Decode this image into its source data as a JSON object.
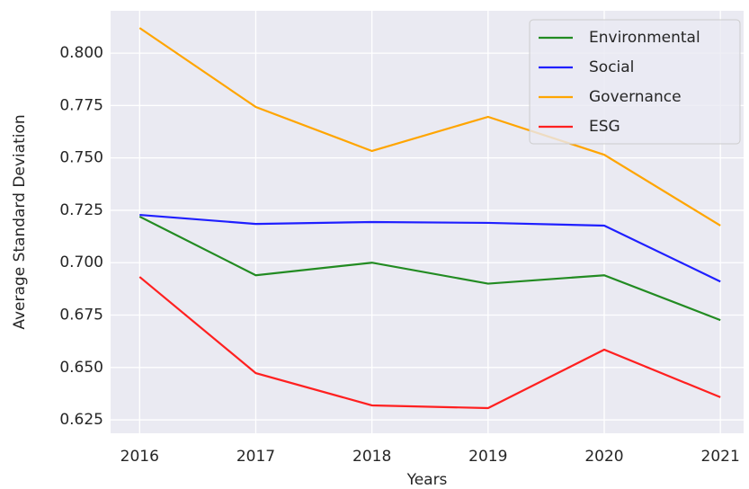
{
  "chart_data": {
    "type": "line",
    "x_label": "Years",
    "y_label": "Average Standard Deviation",
    "x": [
      2016,
      2017,
      2018,
      2019,
      2020,
      2021
    ],
    "series": [
      {
        "name": "Environmental",
        "color": "#228b22",
        "values": [
          0.722,
          0.694,
          0.7,
          0.69,
          0.694,
          0.6726
        ]
      },
      {
        "name": "Social",
        "color": "#1f1fff",
        "values": [
          0.7228,
          0.7185,
          0.7194,
          0.719,
          0.7177,
          0.691
        ]
      },
      {
        "name": "Governance",
        "color": "#ffa500",
        "values": [
          0.812,
          0.7743,
          0.7533,
          0.7696,
          0.7515,
          0.7177
        ]
      },
      {
        "name": "ESG",
        "color": "#ff2020",
        "values": [
          0.6932,
          0.6473,
          0.6319,
          0.6306,
          0.6585,
          0.6358
        ]
      }
    ],
    "xlim": [
      2015.75,
      2021.2
    ],
    "xticks": [
      2016,
      2017,
      2018,
      2019,
      2020,
      2021
    ],
    "ylim": [
      0.6186,
      0.8202
    ],
    "yticks": [
      0.625,
      {
        "value": 0.65,
        "label": "0.650"
      },
      0.675,
      {
        "value": 0.7,
        "label": "0.700"
      },
      0.725,
      {
        "value": 0.75,
        "label": "0.750"
      },
      0.775,
      {
        "value": 0.8,
        "label": "0.800"
      }
    ],
    "grid": true,
    "legend": "upper right"
  }
}
